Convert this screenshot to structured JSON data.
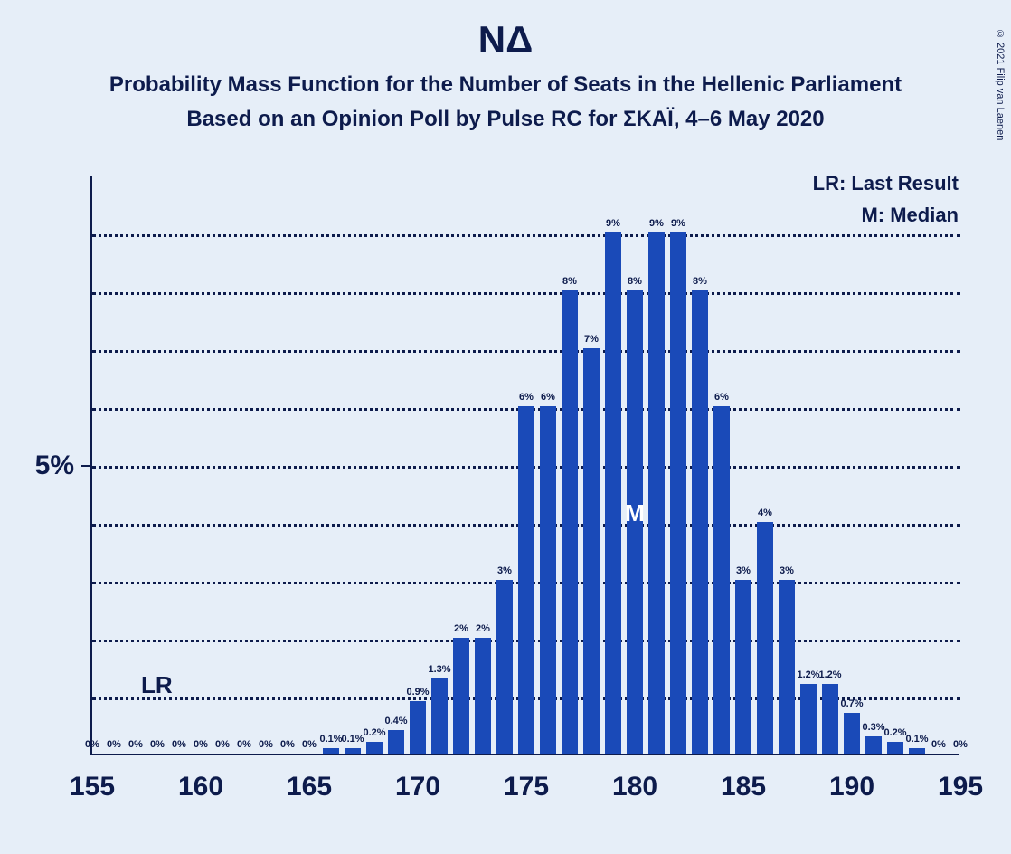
{
  "title": "ΝΔ",
  "subtitle1": "Probability Mass Function for the Number of Seats in the Hellenic Parliament",
  "subtitle2": "Based on an Opinion Poll by Pulse RC for ΣΚΑΪ, 4–6 May 2020",
  "legend": {
    "lr": "LR: Last Result",
    "m": "M: Median"
  },
  "copyright": "© 2021 Filip van Laenen",
  "chart": {
    "type": "bar",
    "x_min": 155,
    "x_max": 195,
    "y_min": 0,
    "y_max": 10,
    "y_tick_major": 5,
    "y_gridlines": [
      1,
      2,
      3,
      4,
      5,
      6,
      7,
      8,
      9
    ],
    "x_ticks": [
      155,
      160,
      165,
      170,
      175,
      180,
      185,
      190,
      195
    ],
    "bar_color": "#1a4ab8",
    "bar_width_ratio": 0.78,
    "grid_color": "#0d1b4c",
    "axis_color": "#0d1b4c",
    "background_color": "#e6eef8",
    "text_color": "#0d1b4c",
    "lr_mark_x": 158,
    "m_mark_x": 180,
    "title_fontsize": 42,
    "subtitle_fontsize": 24,
    "axis_label_fontsize": 30,
    "bar_label_fontsize": 11,
    "bars": [
      {
        "x": 155,
        "v": 0,
        "label": "0%"
      },
      {
        "x": 156,
        "v": 0,
        "label": "0%"
      },
      {
        "x": 157,
        "v": 0,
        "label": "0%"
      },
      {
        "x": 158,
        "v": 0,
        "label": "0%"
      },
      {
        "x": 159,
        "v": 0,
        "label": "0%"
      },
      {
        "x": 160,
        "v": 0,
        "label": "0%"
      },
      {
        "x": 161,
        "v": 0,
        "label": "0%"
      },
      {
        "x": 162,
        "v": 0,
        "label": "0%"
      },
      {
        "x": 163,
        "v": 0,
        "label": "0%"
      },
      {
        "x": 164,
        "v": 0,
        "label": "0%"
      },
      {
        "x": 165,
        "v": 0,
        "label": "0%"
      },
      {
        "x": 166,
        "v": 0.1,
        "label": "0.1%"
      },
      {
        "x": 167,
        "v": 0.1,
        "label": "0.1%"
      },
      {
        "x": 168,
        "v": 0.2,
        "label": "0.2%"
      },
      {
        "x": 169,
        "v": 0.4,
        "label": "0.4%"
      },
      {
        "x": 170,
        "v": 0.9,
        "label": "0.9%"
      },
      {
        "x": 171,
        "v": 1.3,
        "label": "1.3%"
      },
      {
        "x": 172,
        "v": 2,
        "label": "2%"
      },
      {
        "x": 173,
        "v": 2,
        "label": "2%"
      },
      {
        "x": 174,
        "v": 3,
        "label": "3%"
      },
      {
        "x": 175,
        "v": 6,
        "label": "6%"
      },
      {
        "x": 176,
        "v": 6,
        "label": "6%"
      },
      {
        "x": 177,
        "v": 8,
        "label": "8%"
      },
      {
        "x": 178,
        "v": 7,
        "label": "7%"
      },
      {
        "x": 179,
        "v": 9,
        "label": "9%"
      },
      {
        "x": 180,
        "v": 8,
        "label": "8%"
      },
      {
        "x": 181,
        "v": 9,
        "label": "9%"
      },
      {
        "x": 182,
        "v": 9,
        "label": "9%"
      },
      {
        "x": 183,
        "v": 8,
        "label": "8%"
      },
      {
        "x": 184,
        "v": 6,
        "label": "6%"
      },
      {
        "x": 185,
        "v": 3,
        "label": "3%"
      },
      {
        "x": 186,
        "v": 4,
        "label": "4%"
      },
      {
        "x": 187,
        "v": 3,
        "label": "3%"
      },
      {
        "x": 188,
        "v": 1.2,
        "label": "1.2%"
      },
      {
        "x": 189,
        "v": 1.2,
        "label": "1.2%"
      },
      {
        "x": 190,
        "v": 0.7,
        "label": "0.7%"
      },
      {
        "x": 191,
        "v": 0.3,
        "label": "0.3%"
      },
      {
        "x": 192,
        "v": 0.2,
        "label": "0.2%"
      },
      {
        "x": 193,
        "v": 0.1,
        "label": "0.1%"
      },
      {
        "x": 194,
        "v": 0,
        "label": "0%"
      },
      {
        "x": 195,
        "v": 0,
        "label": "0%"
      }
    ]
  },
  "y_label_5": "5%"
}
